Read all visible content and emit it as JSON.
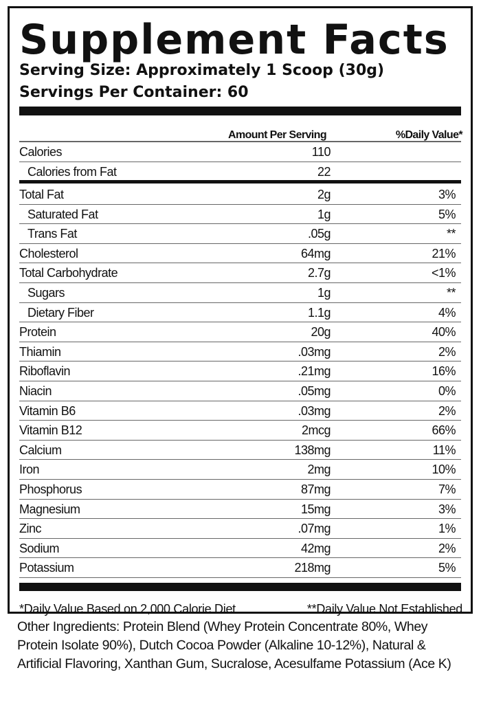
{
  "title": "Supplement Facts",
  "serving_size": "Serving Size: Approximately 1 Scoop (30g)",
  "servings_per_container": "Servings Per Container: 60",
  "headers": {
    "amount": "Amount Per Serving",
    "dv": "%Daily Value*"
  },
  "calories": [
    {
      "label": "Calories",
      "amount": "110",
      "dv": "",
      "indent": false
    },
    {
      "label": "Calories from Fat",
      "amount": "22",
      "dv": "",
      "indent": true
    }
  ],
  "nutrients": [
    {
      "label": "Total Fat",
      "amount": "2g",
      "dv": "3%",
      "indent": false
    },
    {
      "label": "Saturated Fat",
      "amount": "1g",
      "dv": "5%",
      "indent": true
    },
    {
      "label": "Trans Fat",
      "amount": ".05g",
      "dv": "**",
      "indent": true
    },
    {
      "label": "Cholesterol",
      "amount": "64mg",
      "dv": "21%",
      "indent": false
    },
    {
      "label": "Total Carbohydrate",
      "amount": "2.7g",
      "dv": "<1%",
      "indent": false
    },
    {
      "label": "Sugars",
      "amount": "1g",
      "dv": "**",
      "indent": true
    },
    {
      "label": "Dietary Fiber",
      "amount": "1.1g",
      "dv": "4%",
      "indent": true
    },
    {
      "label": "Protein",
      "amount": "20g",
      "dv": "40%",
      "indent": false
    },
    {
      "label": "Thiamin",
      "amount": ".03mg",
      "dv": "2%",
      "indent": false
    },
    {
      "label": "Riboflavin",
      "amount": ".21mg",
      "dv": "16%",
      "indent": false
    },
    {
      "label": "Niacin",
      "amount": ".05mg",
      "dv": "0%",
      "indent": false
    },
    {
      "label": "Vitamin B6",
      "amount": ".03mg",
      "dv": "2%",
      "indent": false
    },
    {
      "label": "Vitamin B12",
      "amount": "2mcg",
      "dv": "66%",
      "indent": false
    },
    {
      "label": "Calcium",
      "amount": "138mg",
      "dv": "11%",
      "indent": false
    },
    {
      "label": "Iron",
      "amount": "2mg",
      "dv": "10%",
      "indent": false
    },
    {
      "label": "Phosphorus",
      "amount": "87mg",
      "dv": "7%",
      "indent": false
    },
    {
      "label": "Magnesium",
      "amount": "15mg",
      "dv": "3%",
      "indent": false
    },
    {
      "label": "Zinc",
      "amount": ".07mg",
      "dv": "1%",
      "indent": false
    },
    {
      "label": "Sodium",
      "amount": "42mg",
      "dv": "2%",
      "indent": false
    },
    {
      "label": "Potassium",
      "amount": "218mg",
      "dv": "5%",
      "indent": false
    }
  ],
  "footnotes": {
    "left": "*Daily Value Based on 2,000 Calorie Diet",
    "right": "**Daily Value Not Established"
  },
  "other_ingredients": "Other Ingredients: Protein Blend (Whey Protein Concentrate 80%, Whey Protein Isolate 90%), Dutch Cocoa Powder (Alkaline 10-12%), Natural & Artificial Flavoring, Xanthan  Gum, Sucralose, Acesulfame Potassium (Ace K)"
}
